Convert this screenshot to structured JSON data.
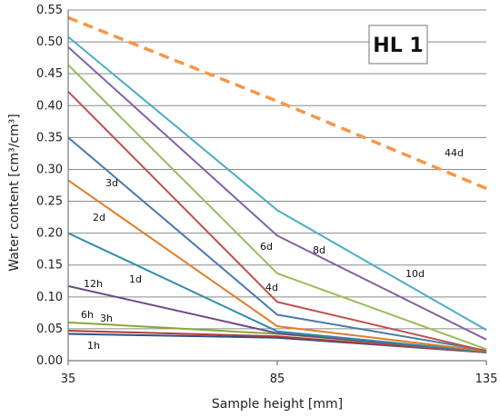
{
  "chart_data": {
    "type": "line",
    "xlabel": "Sample height [mm]",
    "ylabel": "Water content [cm³/cm³]",
    "annotation": "HL 1",
    "x": [
      35,
      85,
      135
    ],
    "xlim": [
      35,
      135
    ],
    "ylim": [
      0,
      0.55
    ],
    "xticks": [
      "35",
      "85",
      "135"
    ],
    "yticks": [
      "0.00",
      "0.05",
      "0.10",
      "0.15",
      "0.20",
      "0.25",
      "0.30",
      "0.35",
      "0.40",
      "0.45",
      "0.50",
      "0.55"
    ],
    "grid": "horizontal",
    "series": [
      {
        "name": "1h",
        "color": "#2b4f8a",
        "values": [
          0.042,
          0.036,
          0.013
        ]
      },
      {
        "name": "3h",
        "color": "#b13a3a",
        "values": [
          0.047,
          0.038,
          0.013
        ]
      },
      {
        "name": "6h",
        "color": "#8aa63a",
        "values": [
          0.06,
          0.042,
          0.014
        ]
      },
      {
        "name": "12h",
        "color": "#6a4a8a",
        "values": [
          0.117,
          0.043,
          0.014
        ]
      },
      {
        "name": "1d",
        "color": "#2e8ea8",
        "values": [
          0.2,
          0.046,
          0.014
        ]
      },
      {
        "name": "2d",
        "color": "#e07b2a",
        "values": [
          0.283,
          0.054,
          0.015
        ]
      },
      {
        "name": "3d",
        "color": "#4a78b0",
        "values": [
          0.35,
          0.072,
          0.016
        ]
      },
      {
        "name": "4d",
        "color": "#c0504d",
        "values": [
          0.422,
          0.092,
          0.015
        ]
      },
      {
        "name": "6d",
        "color": "#9bbb59",
        "values": [
          0.464,
          0.137,
          0.018
        ]
      },
      {
        "name": "8d",
        "color": "#8064a2",
        "values": [
          0.492,
          0.196,
          0.033
        ]
      },
      {
        "name": "10d",
        "color": "#4bacc6",
        "values": [
          0.508,
          0.236,
          0.048
        ]
      },
      {
        "name": "44d",
        "color": "#f79646",
        "dashed": true,
        "values": [
          0.538,
          0.407,
          0.27
        ]
      }
    ]
  }
}
